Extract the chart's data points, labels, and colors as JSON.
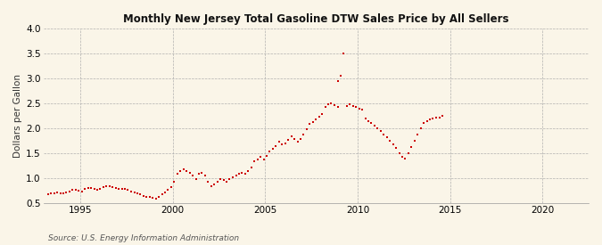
{
  "title": "Monthly New Jersey Total Gasoline DTW Sales Price by All Sellers",
  "ylabel": "Dollars per Gallon",
  "source": "Source: U.S. Energy Information Administration",
  "xlim": [
    1993.0,
    2022.5
  ],
  "ylim": [
    0.5,
    4.0
  ],
  "yticks": [
    0.5,
    1.0,
    1.5,
    2.0,
    2.5,
    3.0,
    3.5,
    4.0
  ],
  "ytick_labels": [
    "0.5",
    "1.0",
    "1.5",
    "2.0",
    "2.5",
    "3.0",
    "3.5",
    "4.0"
  ],
  "xticks": [
    1995,
    2000,
    2005,
    2010,
    2015,
    2020
  ],
  "xtick_labels": [
    "1995",
    "2000",
    "2005",
    "2010",
    "2015",
    "2020"
  ],
  "background_color": "#FAF5E8",
  "dot_color": "#CC0000",
  "data": [
    [
      1993.25,
      0.67
    ],
    [
      1993.42,
      0.69
    ],
    [
      1993.58,
      0.7
    ],
    [
      1993.75,
      0.71
    ],
    [
      1993.92,
      0.7
    ],
    [
      1994.08,
      0.69
    ],
    [
      1994.25,
      0.71
    ],
    [
      1994.42,
      0.74
    ],
    [
      1994.58,
      0.76
    ],
    [
      1994.75,
      0.77
    ],
    [
      1994.92,
      0.75
    ],
    [
      1995.08,
      0.74
    ],
    [
      1995.25,
      0.78
    ],
    [
      1995.42,
      0.8
    ],
    [
      1995.58,
      0.8
    ],
    [
      1995.75,
      0.78
    ],
    [
      1995.92,
      0.76
    ],
    [
      1996.08,
      0.78
    ],
    [
      1996.25,
      0.82
    ],
    [
      1996.42,
      0.84
    ],
    [
      1996.58,
      0.83
    ],
    [
      1996.75,
      0.82
    ],
    [
      1996.92,
      0.8
    ],
    [
      1997.08,
      0.78
    ],
    [
      1997.25,
      0.79
    ],
    [
      1997.42,
      0.78
    ],
    [
      1997.58,
      0.76
    ],
    [
      1997.75,
      0.74
    ],
    [
      1997.92,
      0.72
    ],
    [
      1998.08,
      0.7
    ],
    [
      1998.25,
      0.67
    ],
    [
      1998.42,
      0.65
    ],
    [
      1998.58,
      0.63
    ],
    [
      1998.75,
      0.62
    ],
    [
      1998.92,
      0.6
    ],
    [
      1999.08,
      0.58
    ],
    [
      1999.25,
      0.63
    ],
    [
      1999.42,
      0.68
    ],
    [
      1999.58,
      0.72
    ],
    [
      1999.75,
      0.76
    ],
    [
      1999.92,
      0.82
    ],
    [
      2000.08,
      0.93
    ],
    [
      2000.25,
      1.08
    ],
    [
      2000.42,
      1.14
    ],
    [
      2000.58,
      1.18
    ],
    [
      2000.75,
      1.15
    ],
    [
      2000.92,
      1.1
    ],
    [
      2001.08,
      1.05
    ],
    [
      2001.25,
      0.99
    ],
    [
      2001.42,
      1.08
    ],
    [
      2001.58,
      1.1
    ],
    [
      2001.75,
      1.05
    ],
    [
      2001.92,
      0.92
    ],
    [
      2002.08,
      0.83
    ],
    [
      2002.25,
      0.88
    ],
    [
      2002.42,
      0.92
    ],
    [
      2002.58,
      0.98
    ],
    [
      2002.75,
      0.96
    ],
    [
      2002.92,
      0.93
    ],
    [
      2003.08,
      0.98
    ],
    [
      2003.25,
      1.02
    ],
    [
      2003.42,
      1.05
    ],
    [
      2003.58,
      1.08
    ],
    [
      2003.75,
      1.1
    ],
    [
      2003.92,
      1.08
    ],
    [
      2004.08,
      1.14
    ],
    [
      2004.25,
      1.22
    ],
    [
      2004.42,
      1.33
    ],
    [
      2004.58,
      1.38
    ],
    [
      2004.75,
      1.43
    ],
    [
      2004.92,
      1.38
    ],
    [
      2005.08,
      1.44
    ],
    [
      2005.25,
      1.53
    ],
    [
      2005.42,
      1.58
    ],
    [
      2005.58,
      1.65
    ],
    [
      2005.75,
      1.73
    ],
    [
      2005.92,
      1.68
    ],
    [
      2006.08,
      1.7
    ],
    [
      2006.25,
      1.76
    ],
    [
      2006.42,
      1.83
    ],
    [
      2006.58,
      1.78
    ],
    [
      2006.75,
      1.73
    ],
    [
      2006.92,
      1.78
    ],
    [
      2007.08,
      1.88
    ],
    [
      2007.25,
      1.98
    ],
    [
      2007.42,
      2.08
    ],
    [
      2007.58,
      2.13
    ],
    [
      2007.75,
      2.18
    ],
    [
      2007.92,
      2.23
    ],
    [
      2008.08,
      2.28
    ],
    [
      2008.25,
      2.43
    ],
    [
      2008.42,
      2.48
    ],
    [
      2008.58,
      2.5
    ],
    [
      2008.75,
      2.46
    ],
    [
      2008.92,
      2.43
    ],
    [
      2008.92,
      2.95
    ],
    [
      2009.08,
      3.05
    ],
    [
      2009.25,
      3.5
    ],
    [
      2009.42,
      2.45
    ],
    [
      2009.58,
      2.48
    ],
    [
      2009.75,
      2.45
    ],
    [
      2009.92,
      2.42
    ],
    [
      2010.08,
      2.4
    ],
    [
      2010.25,
      2.38
    ],
    [
      2010.42,
      2.2
    ],
    [
      2010.58,
      2.15
    ],
    [
      2010.75,
      2.1
    ],
    [
      2010.92,
      2.05
    ],
    [
      2011.08,
      2.0
    ],
    [
      2011.25,
      1.95
    ],
    [
      2011.42,
      1.88
    ],
    [
      2011.58,
      1.82
    ],
    [
      2011.75,
      1.75
    ],
    [
      2011.92,
      1.68
    ],
    [
      2012.08,
      1.6
    ],
    [
      2012.25,
      1.5
    ],
    [
      2012.42,
      1.42
    ],
    [
      2012.58,
      1.4
    ],
    [
      2012.75,
      1.5
    ],
    [
      2012.92,
      1.62
    ],
    [
      2013.08,
      1.75
    ],
    [
      2013.25,
      1.88
    ],
    [
      2013.42,
      2.0
    ],
    [
      2013.58,
      2.1
    ],
    [
      2013.75,
      2.15
    ],
    [
      2013.92,
      2.18
    ],
    [
      2014.08,
      2.2
    ],
    [
      2014.25,
      2.22
    ],
    [
      2014.42,
      2.22
    ],
    [
      2014.58,
      2.25
    ]
  ]
}
